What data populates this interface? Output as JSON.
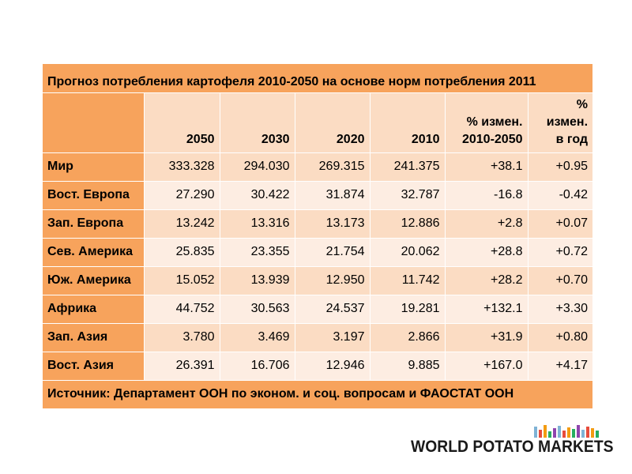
{
  "table": {
    "title": "Прогноз потребления картофеля 2010-2050  на основе норм потребления 2011",
    "columns": [
      "",
      "2050",
      "2030",
      "2020",
      "2010",
      "% измен.\n2010-2050",
      "%\nизмен.\nв год"
    ],
    "rows": [
      [
        "Мир",
        "333.328",
        "294.030",
        "269.315",
        "241.375",
        "+38.1",
        "+0.95"
      ],
      [
        "Вост. Европа",
        "27.290",
        "30.422",
        "31.874",
        "32.787",
        "-16.8",
        "-0.42"
      ],
      [
        "Зап. Европа",
        "13.242",
        "13.316",
        "13.173",
        "12.886",
        "+2.8",
        "+0.07"
      ],
      [
        "Сев. Америка",
        "25.835",
        "23.355",
        "21.754",
        "20.062",
        "+28.8",
        "+0.72"
      ],
      [
        "Юж. Америка",
        "15.052",
        "13.939",
        "12.950",
        "11.742",
        "+28.2",
        "+0.70"
      ],
      [
        "Африка",
        "44.752",
        "30.563",
        "24.537",
        "19.281",
        "+132.1",
        "+3.30"
      ],
      [
        "Зап. Азия",
        "3.780",
        "3.469",
        "3.197",
        "2.866",
        "+31.9",
        "+0.80"
      ],
      [
        "Вост. Азия",
        "26.391",
        "16.706",
        "12.946",
        "9.885",
        "+167.0",
        "+4.17"
      ]
    ],
    "source": "Источник: Департамент ООН по эконом. и соц. вопросам и ФАОСТАТ ООН"
  },
  "logo": {
    "text": "WORLD POTATO MARKETS",
    "bar_colors": [
      "#7fb3d5",
      "#e74c3c",
      "#f39c12",
      "#27ae60",
      "#8e44ad"
    ]
  },
  "colors": {
    "header_orange": "#f7a35c",
    "light_peach": "#fbdcc3",
    "lighter_peach": "#fdede2"
  }
}
